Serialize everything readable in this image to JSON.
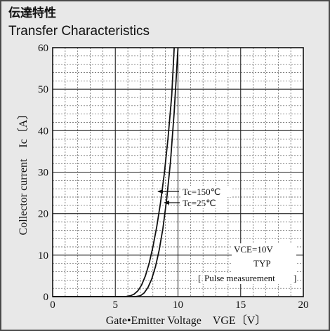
{
  "header": {
    "title_jp": "伝達特性",
    "title_en": "Transfer Characteristics"
  },
  "chart_data": {
    "type": "line",
    "xlabel": "Gate•Emitter Voltage　VGE〔V〕",
    "ylabel": "Collector current　Ic〔A〕",
    "xlim": [
      0,
      20
    ],
    "ylim": [
      0,
      60
    ],
    "x_ticks": [
      0,
      5,
      10,
      15,
      20
    ],
    "y_ticks": [
      0,
      10,
      20,
      30,
      40,
      50,
      60
    ],
    "grid": true,
    "series": [
      {
        "name": "Tc=150℃",
        "x": [
          0,
          5.8,
          6.2,
          6.5,
          6.8,
          7.1,
          7.4,
          7.7,
          8.0,
          8.3,
          8.6,
          8.9,
          9.2,
          9.5,
          9.7
        ],
        "y": [
          0,
          0,
          0.2,
          0.6,
          1.4,
          2.8,
          5.0,
          8.0,
          12.0,
          16.8,
          22.5,
          29.5,
          38.0,
          48.5,
          60
        ]
      },
      {
        "name": "Tc=25℃",
        "x": [
          0,
          6.6,
          7.0,
          7.3,
          7.6,
          7.9,
          8.2,
          8.5,
          8.8,
          9.1,
          9.4,
          9.7,
          10.0
        ],
        "y": [
          0,
          0,
          0.2,
          0.9,
          2.2,
          4.2,
          7.2,
          11.2,
          16.5,
          23.5,
          32.5,
          44.5,
          60
        ]
      }
    ],
    "annotations": {
      "tc150": "Tc=150℃",
      "tc25": "Tc=25℃",
      "vce": "VCE=10V",
      "typ": "TYP",
      "pulse": "Pulse measurement"
    }
  }
}
